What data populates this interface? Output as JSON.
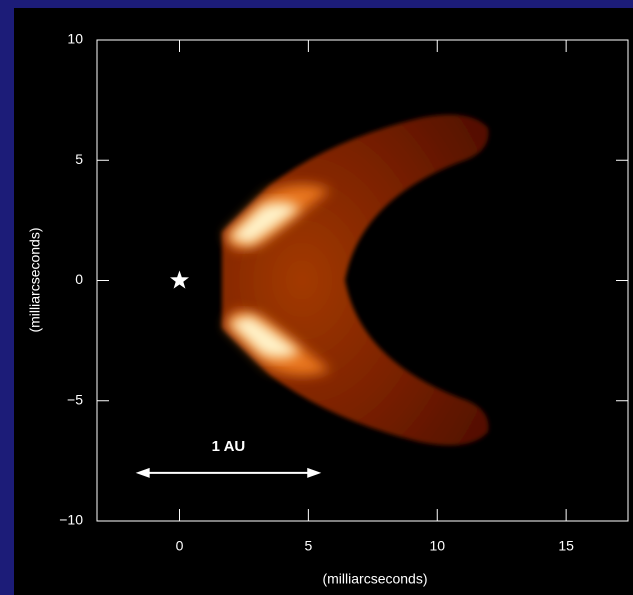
{
  "chart_data": {
    "type": "image",
    "xlabel": "(milliarcseconds)",
    "ylabel": "(milliarcseconds)",
    "xlim": [
      -3.2,
      17.4
    ],
    "ylim": [
      -10,
      10
    ],
    "xticks": [
      0,
      5,
      10,
      15
    ],
    "yticks": [
      {
        "value": -10,
        "label": "−10"
      },
      {
        "value": -5,
        "label": "−5"
      },
      0,
      5,
      10
    ],
    "markers": [
      {
        "x": 0,
        "y": 0
      }
    ],
    "annotations": [
      {
        "text": "1 AU",
        "x1": -1.7,
        "x2": 5.5,
        "y": -8
      }
    ]
  }
}
